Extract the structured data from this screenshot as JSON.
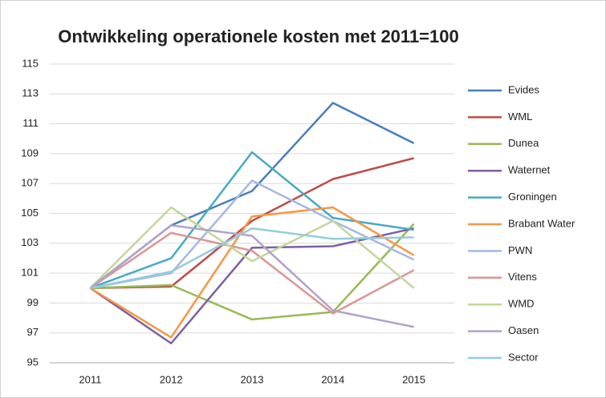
{
  "chart_data": {
    "type": "line",
    "title": "Ontwikkeling operationele kosten met 2011=100",
    "categories": [
      "2011",
      "2012",
      "2013",
      "2014",
      "2015"
    ],
    "series": [
      {
        "name": "Evides",
        "color": "#4a7ebb",
        "values": [
          100,
          104.2,
          106.5,
          112.4,
          109.7
        ]
      },
      {
        "name": "WML",
        "color": "#be4b48",
        "values": [
          100,
          100.1,
          104.5,
          107.3,
          108.7
        ]
      },
      {
        "name": "Dunea",
        "color": "#98b954",
        "values": [
          100,
          100.2,
          97.9,
          98.4,
          104.3
        ]
      },
      {
        "name": "Waternet",
        "color": "#7d60a0",
        "values": [
          100,
          96.3,
          102.7,
          102.8,
          104.0
        ]
      },
      {
        "name": "Groningen",
        "color": "#46aac5",
        "values": [
          100,
          102.0,
          109.1,
          104.7,
          103.9
        ]
      },
      {
        "name": "Brabant Water",
        "color": "#f79646",
        "values": [
          100,
          96.7,
          104.8,
          105.4,
          102.2
        ]
      },
      {
        "name": "PWN",
        "color": "#a5b8e3",
        "values": [
          100,
          101.0,
          107.2,
          104.5,
          101.9
        ]
      },
      {
        "name": "Vitens",
        "color": "#d99694",
        "values": [
          100,
          103.7,
          102.5,
          98.3,
          101.2
        ]
      },
      {
        "name": "WMD",
        "color": "#c3d69b",
        "values": [
          100,
          105.4,
          101.8,
          104.5,
          100.0
        ]
      },
      {
        "name": "Oasen",
        "color": "#b3a2c7",
        "values": [
          100,
          104.2,
          103.5,
          98.5,
          97.4
        ]
      },
      {
        "name": "Sector",
        "color": "#92cddc",
        "values": [
          100,
          101.1,
          104.0,
          103.3,
          103.4
        ]
      }
    ],
    "ylim": [
      95,
      115
    ],
    "yticks": [
      95,
      97,
      99,
      101,
      103,
      105,
      107,
      109,
      111,
      113,
      115
    ],
    "grid": true,
    "legend": "right"
  }
}
